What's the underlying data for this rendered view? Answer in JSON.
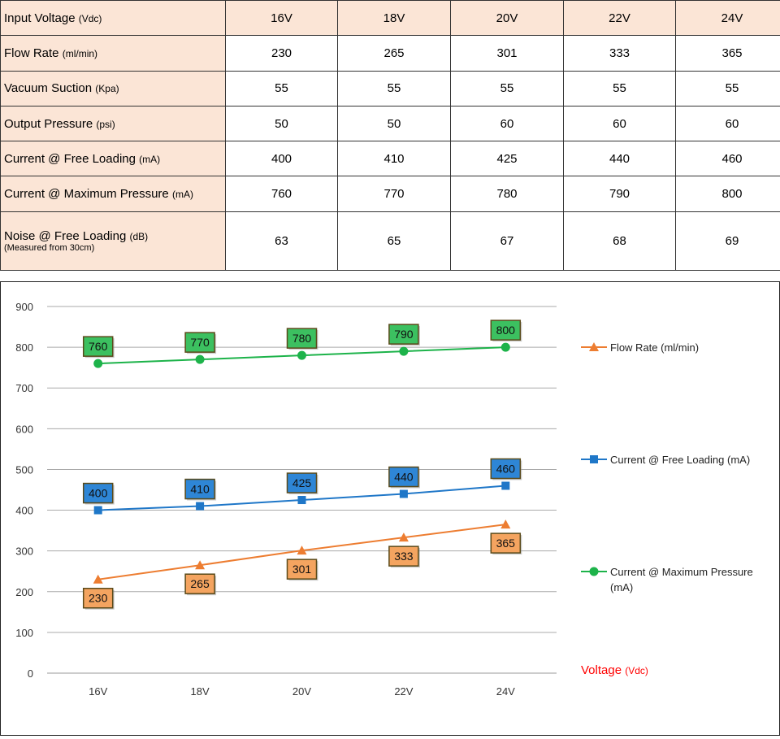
{
  "table": {
    "header": {
      "label": "Input Voltage",
      "unit": "(Vdc)",
      "values": [
        "16V",
        "18V",
        "20V",
        "22V",
        "24V"
      ]
    },
    "rows": [
      {
        "label": "Flow Rate",
        "unit": "(ml/min)",
        "values": [
          "230",
          "265",
          "301",
          "333",
          "365"
        ]
      },
      {
        "label": "Vacuum Suction",
        "unit": "(Kpa)",
        "values": [
          "55",
          "55",
          "55",
          "55",
          "55"
        ]
      },
      {
        "label": "Output Pressure",
        "unit": "(psi)",
        "values": [
          "50",
          "50",
          "60",
          "60",
          "60"
        ]
      },
      {
        "label": "Current @ Free Loading",
        "unit": "(mA)",
        "values": [
          "400",
          "410",
          "425",
          "440",
          "460"
        ]
      },
      {
        "label": "Current @ Maximum Pressure",
        "unit": "(mA)",
        "values": [
          "760",
          "770",
          "780",
          "790",
          "800"
        ]
      },
      {
        "label": "Noise @ Free Loading",
        "unit": "(dB)",
        "note": "(Measured from 30cm)",
        "values": [
          "63",
          "65",
          "67",
          "68",
          "69"
        ]
      }
    ]
  },
  "chart_data": {
    "type": "line",
    "categories": [
      "16V",
      "18V",
      "20V",
      "22V",
      "24V"
    ],
    "xlabel": "Voltage",
    "xlabel_unit": "(Vdc)",
    "ylim": [
      0,
      900
    ],
    "yticks": [
      0,
      100,
      200,
      300,
      400,
      500,
      600,
      700,
      800,
      900
    ],
    "grid": true,
    "legend": "right",
    "series": [
      {
        "name": "Flow Rate (ml/min)",
        "values": [
          230,
          265,
          301,
          333,
          365
        ],
        "color": "#ed7d31",
        "marker": "triangle",
        "label_pos": "below",
        "label_color": "#f4a460"
      },
      {
        "name": "Current @ Free Loading (mA)",
        "values": [
          400,
          410,
          425,
          440,
          460
        ],
        "color": "#1f77c8",
        "marker": "square",
        "label_pos": "above",
        "label_color": "#2e86d6"
      },
      {
        "name": "Current @ Maximum Pressure (mA)",
        "values": [
          760,
          770,
          780,
          790,
          800
        ],
        "color": "#1db34a",
        "marker": "circle",
        "label_pos": "above",
        "label_color": "#3cc060"
      }
    ]
  }
}
